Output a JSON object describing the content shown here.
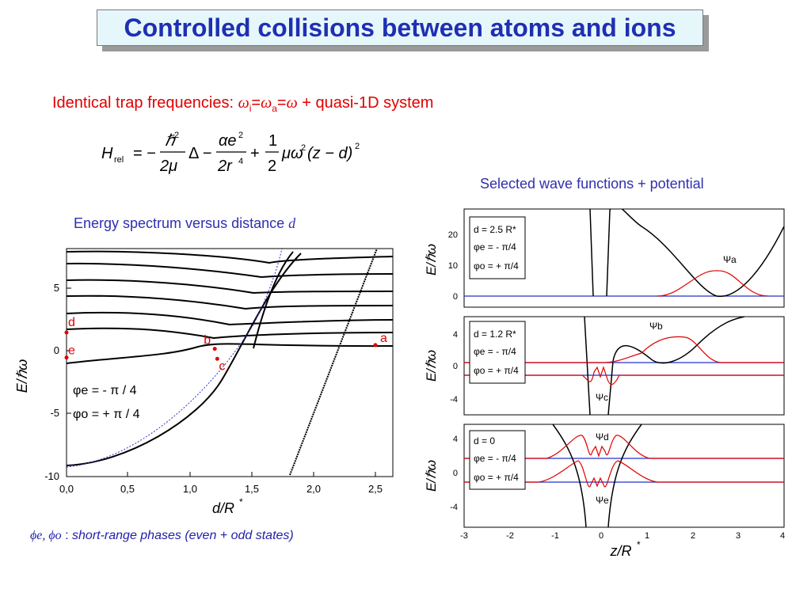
{
  "slide": {
    "title": "Controlled collisions between atoms and ions",
    "subtitle": {
      "prefix": "Identical trap frequencies: ",
      "w_i": "ω",
      "sub_i": "i",
      "eq1": "=",
      "w_a": "ω",
      "sub_a": "a",
      "eq2": "=",
      "w": "ω",
      "suffix": " + quasi-1D system"
    },
    "equation": {
      "H": "H",
      "H_sub": "rel",
      "equals_minus": "= −",
      "hbar2": "ℏ",
      "sq1": "2",
      "den1": "2μ",
      "laplace": "Δ −",
      "alpha_e2": "αe",
      "sq2": "2",
      "den2": "2r",
      "four": "4",
      "plus": "+",
      "one": "1",
      "two": "2",
      "mu_omega": "μω",
      "sq3": "2",
      "paren": "(z − d)",
      "sq4": "2"
    },
    "left_label": {
      "text": "Energy spectrum versus distance ",
      "var": "d"
    },
    "right_label": "Selected wave functions + potential",
    "footer": {
      "symbols": "ϕe, ϕo",
      "sep": " : ",
      "text": "short-range phases (even + odd states)"
    }
  },
  "left_chart": {
    "ylabel": "E/ℏω",
    "xlabel": "d/R",
    "xlabel_sup": "*",
    "xticks": [
      "0,0",
      "0,5",
      "1,0",
      "1,5",
      "2,0",
      "2,5"
    ],
    "yticks": [
      "5",
      "0",
      "-5",
      "-10"
    ],
    "legend_line1": "φe = - π / 4",
    "legend_line2": "φo = + π / 4",
    "points": [
      {
        "label": "a",
        "x": 2.5,
        "y": 0.5
      },
      {
        "label": "b",
        "x": 1.2,
        "y": 0.2
      },
      {
        "label": "c",
        "x": 1.22,
        "y": -0.6
      },
      {
        "label": "d",
        "x": 0.0,
        "y": 1.5
      },
      {
        "label": "e",
        "x": 0.0,
        "y": -0.5
      }
    ],
    "colors": {
      "curve": "#000000",
      "points": "#e00000",
      "dotted": "#3333cc"
    }
  },
  "right_chart": {
    "xlabel": "z/R",
    "xlabel_sup": "*",
    "xticks": [
      "-3",
      "-2",
      "-1",
      "0",
      "1",
      "2",
      "3",
      "4"
    ],
    "ylabel": "E/ℏω",
    "panels": [
      {
        "d_label": "d = 2.5 R*",
        "phi_e": "φe = - π/4",
        "phi_o": "φo = + π/4",
        "yticks": [
          "20",
          "10",
          "0"
        ],
        "psi": [
          "Ψa"
        ]
      },
      {
        "d_label": "d = 1.2 R*",
        "phi_e": "φe = - π/4",
        "phi_o": "φo = + π/4",
        "yticks": [
          "4",
          "0",
          "-4"
        ],
        "psi": [
          "Ψb",
          "Ψc"
        ]
      },
      {
        "d_label": "d = 0",
        "phi_e": "φe = - π/4",
        "phi_o": "φo = + π/4",
        "yticks": [
          "4",
          "0",
          "-4"
        ],
        "psi": [
          "Ψd",
          "Ψe"
        ]
      }
    ],
    "colors": {
      "potential": "#000000",
      "wave": "#e00000",
      "level": "#2233cc"
    }
  }
}
